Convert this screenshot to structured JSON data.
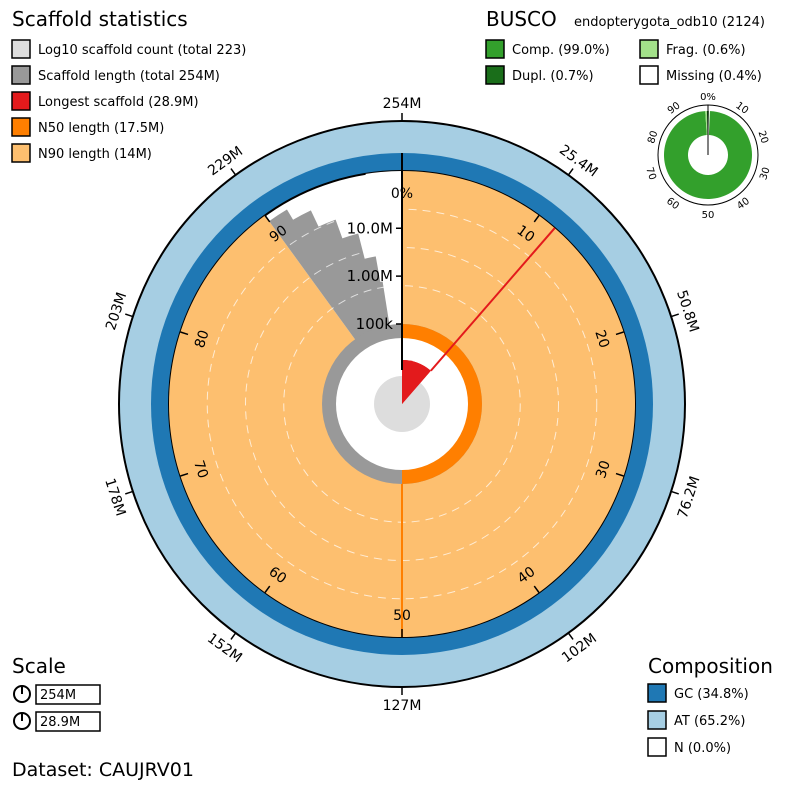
{
  "chart_data": {
    "type": "snail",
    "title": "Scaffold statistics",
    "legend": [
      {
        "label": "Log10 scaffold count (total 223)",
        "color": "#dddddd"
      },
      {
        "label": "Scaffold length (total 254M)",
        "color": "#999999"
      },
      {
        "label": "Longest scaffold (28.9M)",
        "color": "#e31a1c"
      },
      {
        "label": "N50 length (17.5M)",
        "color": "#ff7f00"
      },
      {
        "label": "N90 length (14M)",
        "color": "#fdbf6f"
      }
    ],
    "total_span_mb": 254,
    "scaffold_count": 223,
    "longest_scaffold_mb": 28.9,
    "n50_mb": 17.5,
    "n90_mb": 14,
    "percent_ticks": [
      "0%",
      "10",
      "20",
      "30",
      "40",
      "50",
      "60",
      "70",
      "80",
      "90"
    ],
    "length_ticks": [
      "254M",
      "25.4M",
      "50.8M",
      "76.2M",
      "102M",
      "127M",
      "152M",
      "178M",
      "203M",
      "229M"
    ],
    "radial_scale_labels": [
      "100k",
      "1.00M",
      "10.0M"
    ],
    "composition": {
      "title": "Composition",
      "items": [
        {
          "label": "GC (34.8%)",
          "color": "#1f78b4",
          "value": 34.8
        },
        {
          "label": "AT (65.2%)",
          "color": "#a6cee3",
          "value": 65.2
        },
        {
          "label": "N (0.0%)",
          "color": "#ffffff",
          "value": 0.0
        }
      ]
    },
    "busco": {
      "title": "BUSCO",
      "lineage": "endopterygota_odb10 (2124)",
      "items": [
        {
          "label": "Comp. (99.0%)",
          "color": "#33a02c",
          "value": 99.0
        },
        {
          "label": "Frag. (0.6%)",
          "color": "#a3e28a",
          "value": 0.6
        },
        {
          "label": "Dupl. (0.7%)",
          "color": "#1a6e1a",
          "value": 0.7
        },
        {
          "label": "Missing (0.4%)",
          "color": "#ffffff",
          "value": 0.4
        }
      ],
      "ticks": [
        "0%",
        "10",
        "20",
        "30",
        "40",
        "50",
        "60",
        "70",
        "80",
        "90"
      ]
    },
    "scale": {
      "title": "Scale",
      "items": [
        "254M",
        "28.9M"
      ]
    },
    "dataset": "Dataset: CAUJRV01"
  }
}
